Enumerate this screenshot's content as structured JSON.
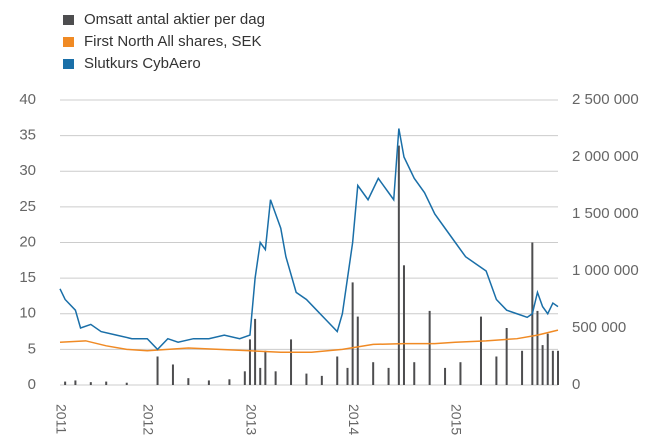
{
  "chart_data": {
    "type": "combo",
    "series": [
      {
        "name": "Omsatt antal aktier per dag",
        "type": "bar",
        "axis": "y2",
        "color": "#4d4d4f",
        "x": [
          2011.2,
          2011.3,
          2011.45,
          2011.6,
          2011.8,
          2012.1,
          2012.25,
          2012.4,
          2012.6,
          2012.8,
          2012.95,
          2013.0,
          2013.05,
          2013.1,
          2013.15,
          2013.25,
          2013.4,
          2013.55,
          2013.7,
          2013.85,
          2013.95,
          2014.0,
          2014.05,
          2014.2,
          2014.35,
          2014.45,
          2014.5,
          2014.6,
          2014.75,
          2014.9,
          2015.05,
          2015.25,
          2015.4,
          2015.5,
          2015.65,
          2015.75,
          2015.8,
          2015.85,
          2015.9,
          2015.95,
          2016.0
        ],
        "values": [
          30000,
          40000,
          25000,
          30000,
          20000,
          250000,
          180000,
          60000,
          40000,
          50000,
          120000,
          400000,
          580000,
          150000,
          300000,
          120000,
          400000,
          100000,
          80000,
          250000,
          150000,
          900000,
          600000,
          200000,
          150000,
          2100000,
          1050000,
          200000,
          650000,
          150000,
          200000,
          600000,
          250000,
          500000,
          300000,
          1250000,
          650000,
          350000,
          450000,
          300000,
          300000
        ]
      },
      {
        "name": "First North All shares, SEK",
        "type": "line",
        "axis": "y",
        "color": "#f08a24",
        "x": [
          2011.15,
          2011.4,
          2011.6,
          2011.8,
          2012.0,
          2012.2,
          2012.4,
          2012.7,
          2013.0,
          2013.3,
          2013.6,
          2013.9,
          2014.2,
          2014.5,
          2014.8,
          2015.0,
          2015.3,
          2015.6,
          2015.8,
          2016.0
        ],
        "values": [
          6,
          6.2,
          5.5,
          5,
          4.8,
          5,
          5.2,
          5,
          4.8,
          4.6,
          4.6,
          5,
          5.7,
          5.8,
          5.8,
          6,
          6.2,
          6.5,
          7,
          7.7
        ]
      },
      {
        "name": "Slutkurs CybAero",
        "type": "line",
        "axis": "y",
        "color": "#1a6fa8",
        "x": [
          2011.15,
          2011.2,
          2011.3,
          2011.35,
          2011.45,
          2011.55,
          2011.7,
          2011.85,
          2012.0,
          2012.1,
          2012.2,
          2012.3,
          2012.45,
          2012.6,
          2012.75,
          2012.9,
          2013.0,
          2013.05,
          2013.1,
          2013.15,
          2013.2,
          2013.25,
          2013.3,
          2013.35,
          2013.45,
          2013.55,
          2013.65,
          2013.75,
          2013.85,
          2013.9,
          2013.95,
          2014.0,
          2014.05,
          2014.15,
          2014.25,
          2014.35,
          2014.4,
          2014.45,
          2014.5,
          2014.6,
          2014.7,
          2014.8,
          2014.9,
          2015.0,
          2015.1,
          2015.2,
          2015.3,
          2015.4,
          2015.5,
          2015.6,
          2015.7,
          2015.75,
          2015.8,
          2015.85,
          2015.9,
          2015.95,
          2016.0
        ],
        "values": [
          13.5,
          12,
          10.5,
          8,
          8.5,
          7.5,
          7,
          6.5,
          6.5,
          5,
          6.5,
          6,
          6.5,
          6.5,
          7,
          6.5,
          7,
          15,
          20,
          19,
          26,
          24,
          22,
          18,
          13,
          12,
          10.5,
          9,
          7.5,
          10,
          15,
          20,
          28,
          26,
          29,
          27,
          26,
          36,
          32,
          29,
          27,
          24,
          22,
          20,
          18,
          17,
          16,
          12,
          10.5,
          10,
          9.5,
          10,
          13,
          11,
          10,
          11.5,
          11
        ]
      }
    ],
    "xlim": [
      2011.15,
      2016.0
    ],
    "xticks": [
      {
        "value": 2011.15,
        "label": "2011"
      },
      2012,
      2013,
      2014,
      2015
    ],
    "ylim": [
      0,
      40
    ],
    "yticks": [
      0,
      5,
      10,
      15,
      20,
      25,
      30,
      35,
      40
    ],
    "y2lim": [
      0,
      2500000
    ],
    "y2ticks": [
      0,
      {
        "value": 500000,
        "label": "500 000"
      },
      {
        "value": 1000000,
        "label": "1 000 000"
      },
      {
        "value": 1500000,
        "label": "1 500 000"
      },
      {
        "value": 2000000,
        "label": "2 000 000"
      },
      {
        "value": 2500000,
        "label": "2 500 000"
      }
    ],
    "grid": true
  }
}
